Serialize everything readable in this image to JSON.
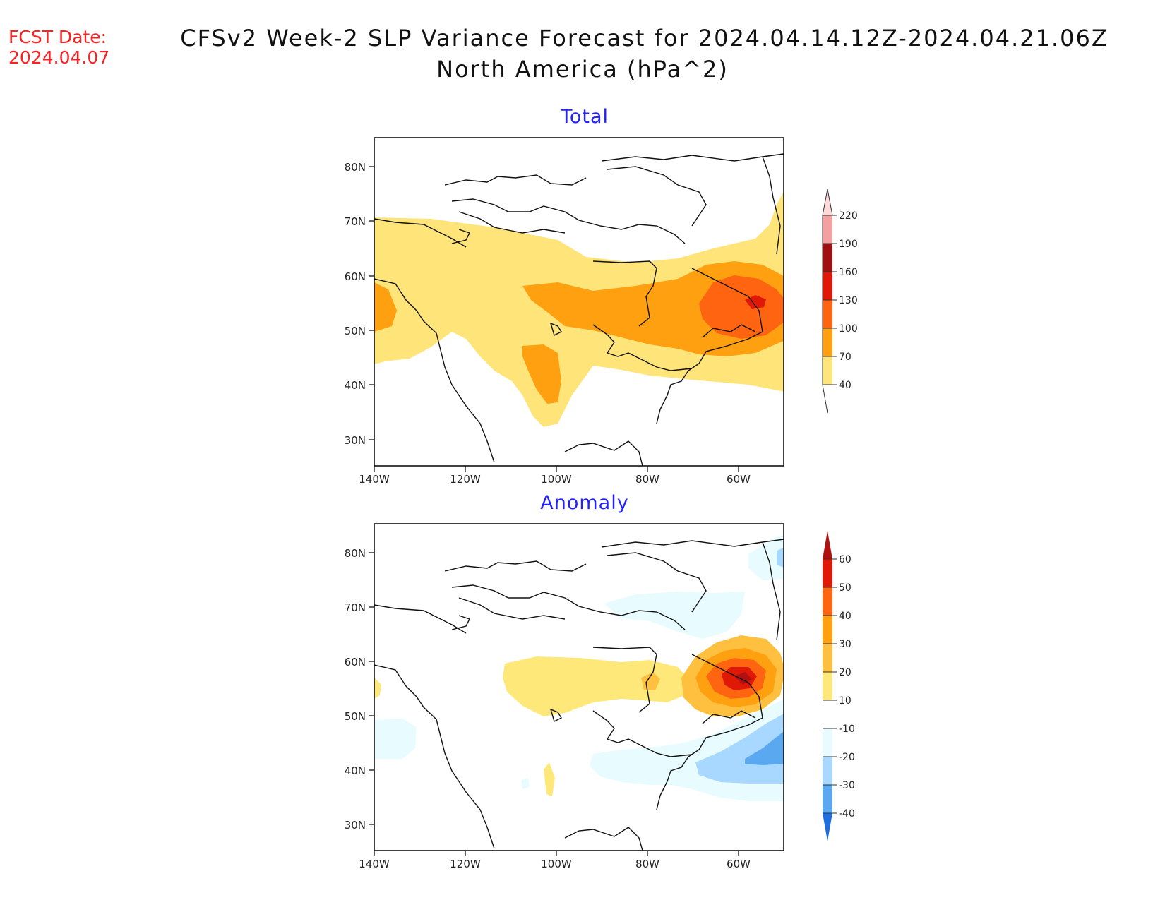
{
  "fcst": {
    "label": "FCST Date:",
    "date": "2024.04.07"
  },
  "title": {
    "line1": "CFSv2 Week-2 SLP Variance Forecast for 2024.04.14.12Z-2024.04.21.06Z",
    "line2": "North America (hPa^2)"
  },
  "panels": [
    {
      "title": "Total",
      "lat_ticks": [
        "80N",
        "70N",
        "60N",
        "50N",
        "40N",
        "30N"
      ],
      "lon_ticks": [
        "140W",
        "120W",
        "100W",
        "80W",
        "60W"
      ],
      "colorbar": {
        "labels": [
          "220",
          "190",
          "160",
          "130",
          "100",
          "70",
          "40"
        ],
        "colors": [
          "#ffd8d8",
          "#f4a0a0",
          "#a01010",
          "#e01808",
          "#ff6410",
          "#ffa010",
          "#ffe47a"
        ]
      }
    },
    {
      "title": "Anomaly",
      "lat_ticks": [
        "80N",
        "70N",
        "60N",
        "50N",
        "40N",
        "30N"
      ],
      "lon_ticks": [
        "140W",
        "120W",
        "100W",
        "80W",
        "60W"
      ],
      "colorbar": {
        "labels": [
          "60",
          "50",
          "40",
          "30",
          "20",
          "10",
          "-10",
          "-20",
          "-30",
          "-40"
        ],
        "colors": [
          "#b01010",
          "#e01808",
          "#ff6410",
          "#ffa010",
          "#ffc040",
          "#ffe87a",
          "#fffaae",
          "#e8fcff",
          "#a8d8ff",
          "#5aa8f0",
          "#1e6ee0"
        ]
      }
    }
  ]
}
